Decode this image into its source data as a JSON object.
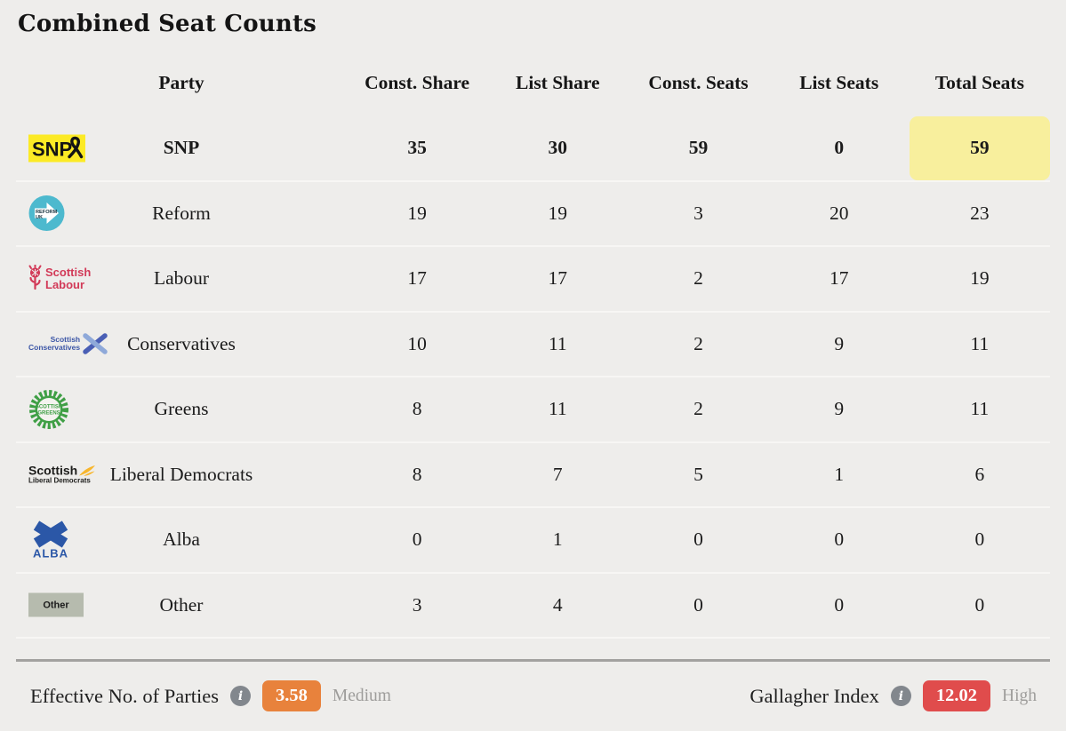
{
  "title": "Combined Seat Counts",
  "table": {
    "columns": [
      "Party",
      "Const. Share",
      "List Share",
      "Const. Seats",
      "List Seats",
      "Total Seats"
    ],
    "rows": [
      {
        "party": "SNP",
        "icon": "snp-logo",
        "values": [
          "35",
          "30",
          "59",
          "0",
          "59"
        ],
        "emphasis": true,
        "highlight_total": true
      },
      {
        "party": "Reform",
        "icon": "reform-uk-logo",
        "values": [
          "19",
          "19",
          "3",
          "20",
          "23"
        ]
      },
      {
        "party": "Labour",
        "icon": "scottish-labour-logo",
        "values": [
          "17",
          "17",
          "2",
          "17",
          "19"
        ]
      },
      {
        "party": "Conservatives",
        "icon": "scottish-conservatives-logo",
        "values": [
          "10",
          "11",
          "2",
          "9",
          "11"
        ]
      },
      {
        "party": "Greens",
        "icon": "scottish-greens-logo",
        "values": [
          "8",
          "11",
          "2",
          "9",
          "11"
        ]
      },
      {
        "party": "Liberal Democrats",
        "icon": "scottish-libdems-logo",
        "values": [
          "8",
          "7",
          "5",
          "1",
          "6"
        ]
      },
      {
        "party": "Alba",
        "icon": "alba-logo",
        "values": [
          "0",
          "1",
          "0",
          "0",
          "0"
        ]
      },
      {
        "party": "Other",
        "icon": "other-badge",
        "values": [
          "3",
          "4",
          "0",
          "0",
          "0"
        ]
      }
    ],
    "highlight_color": "#f8ef9d"
  },
  "icon_labels": {
    "snp": "SNP",
    "reform_line1": "REFORM",
    "reform_line2": "UK",
    "labour_line1": "Scottish",
    "labour_line2": "Labour",
    "conservatives_line1": "Scottish",
    "conservatives_line2": "Conservatives",
    "greens_line1": "SCOTTISH",
    "greens_line2": "GREENS",
    "libdems_line1": "Scottish",
    "libdems_line2": "Liberal Democrats",
    "alba": "ALBA",
    "other": "Other"
  },
  "footer": {
    "enp": {
      "label": "Effective No. of Parties",
      "value": "3.58",
      "level": "Medium",
      "badge_color": "#e8823c"
    },
    "gallagher": {
      "label": "Gallagher Index",
      "value": "12.02",
      "level": "High",
      "badge_color": "#e04c4c"
    }
  }
}
